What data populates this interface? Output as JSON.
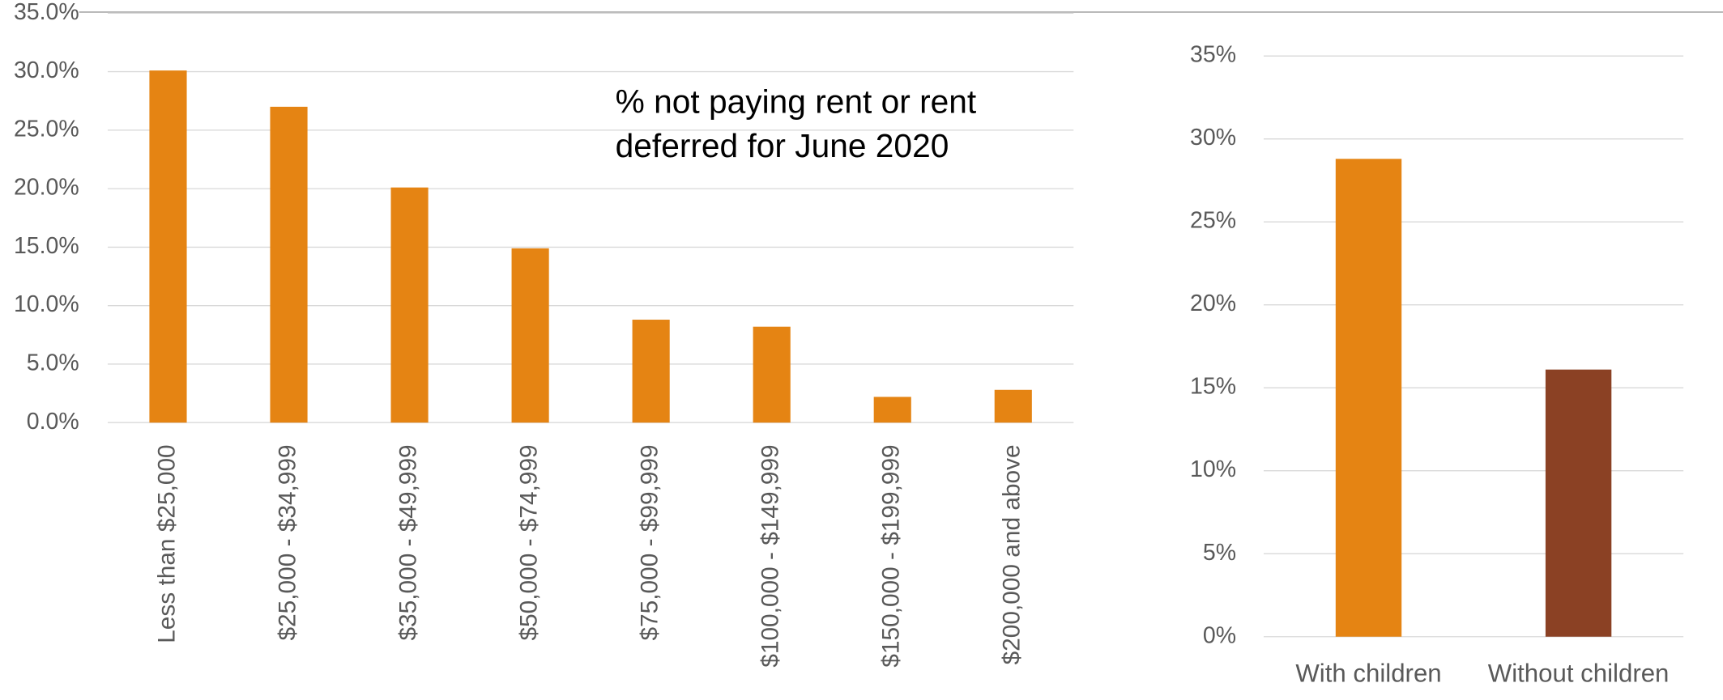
{
  "chart_data": [
    {
      "type": "bar",
      "title": [
        "% not paying rent or rent",
        "deferred  for June 2020"
      ],
      "categories": [
        "Less than $25,000",
        "$25,000 - $34,999",
        "$35,000 - $49,999",
        "$50,000 - $74,999",
        "$75,000 - $99,999",
        "$100,000 - $149,999",
        "$150,000 - $199,999",
        "$200,000 and above"
      ],
      "values": [
        30.1,
        27.0,
        20.1,
        14.9,
        8.8,
        8.2,
        2.2,
        2.8
      ],
      "color": "#e58413",
      "ylim": [
        0,
        35
      ],
      "yticks": [
        {
          "value": 0,
          "label": "0.0%"
        },
        {
          "value": 5,
          "label": "5.0%"
        },
        {
          "value": 10,
          "label": "10.0%"
        },
        {
          "value": 15,
          "label": "15.0%"
        },
        {
          "value": 20,
          "label": "20.0%"
        },
        {
          "value": 25,
          "label": "25.0%"
        },
        {
          "value": 30,
          "label": "30.0%"
        },
        {
          "value": 35,
          "label": "35.0%"
        }
      ],
      "grid": true
    },
    {
      "type": "bar",
      "categories": [
        "With children",
        "Without children"
      ],
      "values": [
        28.8,
        16.1
      ],
      "colors": [
        "#e58413",
        "#8b4124"
      ],
      "ylim": [
        0,
        35
      ],
      "yticks": [
        {
          "value": 0,
          "label": "0%"
        },
        {
          "value": 5,
          "label": "5%"
        },
        {
          "value": 10,
          "label": "10%"
        },
        {
          "value": 15,
          "label": "15%"
        },
        {
          "value": 20,
          "label": "20%"
        },
        {
          "value": 25,
          "label": "25%"
        },
        {
          "value": 30,
          "label": "30%"
        },
        {
          "value": 35,
          "label": "35%"
        }
      ],
      "grid": true
    }
  ]
}
